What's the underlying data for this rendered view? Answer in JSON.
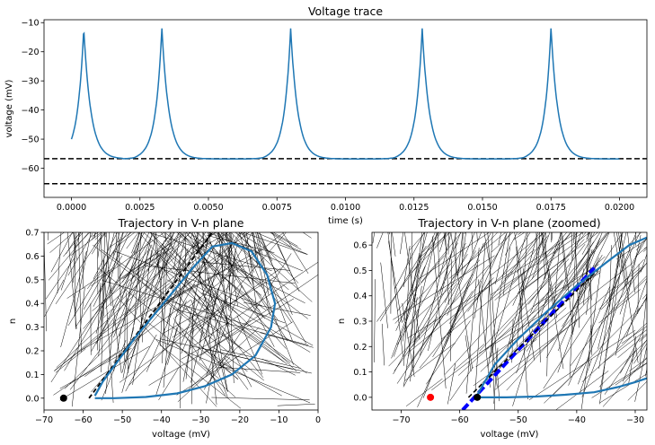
{
  "chart_data": [
    {
      "type": "line",
      "title": "Voltage trace",
      "xlabel": "time (s)",
      "ylabel": "voltage (mV)",
      "xlim": [
        -0.001,
        0.021
      ],
      "ylim": [
        -70,
        -9
      ],
      "xticks": [
        0.0,
        0.0025,
        0.005,
        0.0075,
        0.01,
        0.0125,
        0.015,
        0.0175,
        0.02
      ],
      "xtick_labels": [
        "0.0000",
        "0.0025",
        "0.0050",
        "0.0075",
        "0.0100",
        "0.0125",
        "0.0150",
        "0.0175",
        "0.0200"
      ],
      "yticks": [
        -60,
        -50,
        -40,
        -30,
        -20,
        -10
      ],
      "ytick_labels": [
        "−60",
        "−50",
        "−40",
        "−30",
        "−20",
        "−10"
      ],
      "series": [
        {
          "color": "#1f77b4",
          "start_voltage": -50,
          "rest_voltage": -56.8,
          "spike_times": [
            0.00045,
            0.0033,
            0.008,
            0.0128,
            0.0175
          ],
          "spike_peak": -12
        }
      ],
      "hlines": [
        {
          "y": -56.7,
          "style": "dashed",
          "color": "#000000"
        },
        {
          "y": -65.3,
          "style": "dashed",
          "color": "#000000"
        }
      ]
    },
    {
      "type": "line",
      "title": "Trajectory in V-n plane",
      "xlabel": "voltage (mV)",
      "ylabel": "n",
      "xlim": [
        -70,
        0
      ],
      "ylim": [
        -0.05,
        0.7
      ],
      "xticks": [
        -70,
        -60,
        -50,
        -40,
        -30,
        -20,
        -10,
        0
      ],
      "xtick_labels": [
        "−70",
        "−60",
        "−50",
        "−40",
        "−30",
        "−20",
        "−10",
        "0"
      ],
      "yticks": [
        0.0,
        0.1,
        0.2,
        0.3,
        0.4,
        0.5,
        0.6,
        0.7
      ],
      "ytick_labels": [
        "0.0",
        "0.1",
        "0.2",
        "0.3",
        "0.4",
        "0.5",
        "0.6",
        "0.7"
      ],
      "trajectory": [
        [
          -57,
          0.0
        ],
        [
          -52,
          0.0
        ],
        [
          -44,
          0.005
        ],
        [
          -36,
          0.02
        ],
        [
          -29,
          0.05
        ],
        [
          -22,
          0.1
        ],
        [
          -16,
          0.18
        ],
        [
          -12,
          0.3
        ],
        [
          -11,
          0.4
        ],
        [
          -13,
          0.52
        ],
        [
          -17,
          0.62
        ],
        [
          -22,
          0.655
        ],
        [
          -27,
          0.64
        ],
        [
          -32,
          0.55
        ],
        [
          -37,
          0.45
        ],
        [
          -42,
          0.35
        ],
        [
          -47,
          0.25
        ],
        [
          -51,
          0.16
        ],
        [
          -55,
          0.07
        ],
        [
          -57,
          0.01
        ]
      ],
      "separatrix": [
        [
          -58.5,
          0.0
        ],
        [
          -27,
          0.7
        ]
      ],
      "point": {
        "v": -65,
        "n": 0.0,
        "color": "#000000"
      }
    },
    {
      "type": "line",
      "title": "Trajectory in V-n plane (zoomed)",
      "xlabel": "voltage (mV)",
      "ylabel": "n",
      "xlim": [
        -75,
        -28
      ],
      "ylim": [
        -0.05,
        0.65
      ],
      "xticks": [
        -70,
        -60,
        -50,
        -40,
        -30
      ],
      "xtick_labels": [
        "−70",
        "−60",
        "−50",
        "−40",
        "−30"
      ],
      "yticks": [
        0.0,
        0.1,
        0.2,
        0.3,
        0.4,
        0.5,
        0.6
      ],
      "ytick_labels": [
        "0.0",
        "0.1",
        "0.2",
        "0.3",
        "0.4",
        "0.5",
        "0.6"
      ],
      "trajectory": [
        [
          -57,
          0.0
        ],
        [
          -52,
          0.0
        ],
        [
          -47,
          0.003
        ],
        [
          -42,
          0.01
        ],
        [
          -37,
          0.02
        ],
        [
          -33,
          0.04
        ],
        [
          -30,
          0.06
        ],
        [
          -28,
          0.075
        ]
      ],
      "upper_branch": [
        [
          -28,
          0.63
        ],
        [
          -31,
          0.6
        ],
        [
          -35,
          0.53
        ],
        [
          -40,
          0.44
        ],
        [
          -45,
          0.34
        ],
        [
          -50,
          0.23
        ],
        [
          -54,
          0.13
        ],
        [
          -57,
          0.01
        ]
      ],
      "separatrix": [
        [
          -58.5,
          0.0
        ],
        [
          -36.5,
          0.5
        ]
      ],
      "unstable_curve": [
        [
          -59.5,
          -0.05
        ],
        [
          -37,
          0.51
        ]
      ],
      "points": [
        {
          "v": -65,
          "n": 0.0,
          "color": "#ff0000"
        },
        {
          "v": -57,
          "n": 0.0,
          "color": "#000000"
        }
      ]
    }
  ]
}
